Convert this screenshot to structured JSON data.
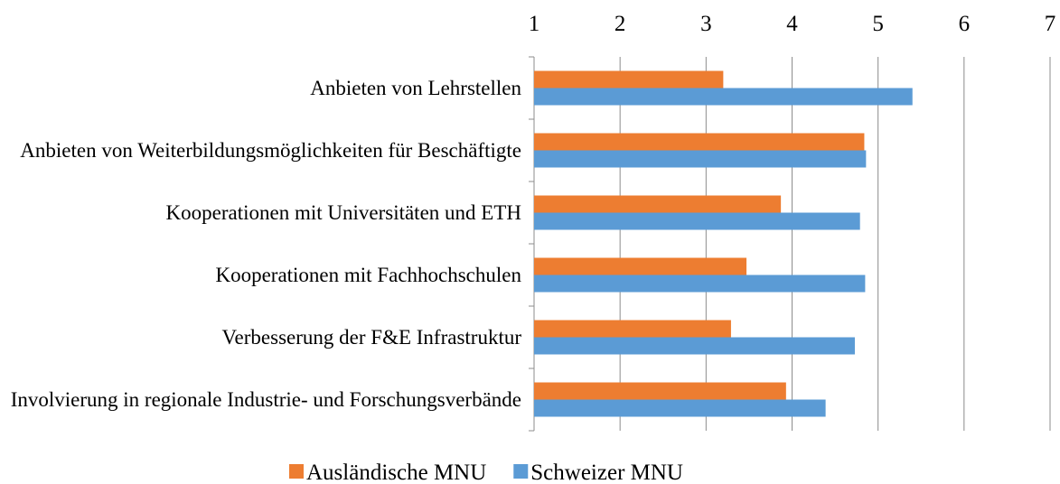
{
  "chart_data": {
    "type": "barh",
    "categories": [
      "Anbieten von Lehrstellen",
      "Anbieten von Weiterbildungsmöglichkeiten für Beschäftigte",
      "Kooperationen mit Universitäten und ETH",
      "Kooperationen mit Fachhochschulen",
      "Verbesserung der F&E Infrastruktur",
      "Involvierung in regionale Industrie- und Forschungsverbände"
    ],
    "series": [
      {
        "name": "Ausländische MNU",
        "color": "#ed7d31",
        "values": [
          3.2,
          4.84,
          3.87,
          3.47,
          3.29,
          3.93
        ]
      },
      {
        "name": "Schweizer MNU",
        "color": "#5b9bd5",
        "values": [
          5.4,
          4.86,
          4.79,
          4.85,
          4.73,
          4.39
        ]
      }
    ],
    "xlim": [
      1,
      7
    ],
    "xticks": [
      1,
      2,
      3,
      4,
      5,
      6,
      7
    ],
    "grid": true
  }
}
